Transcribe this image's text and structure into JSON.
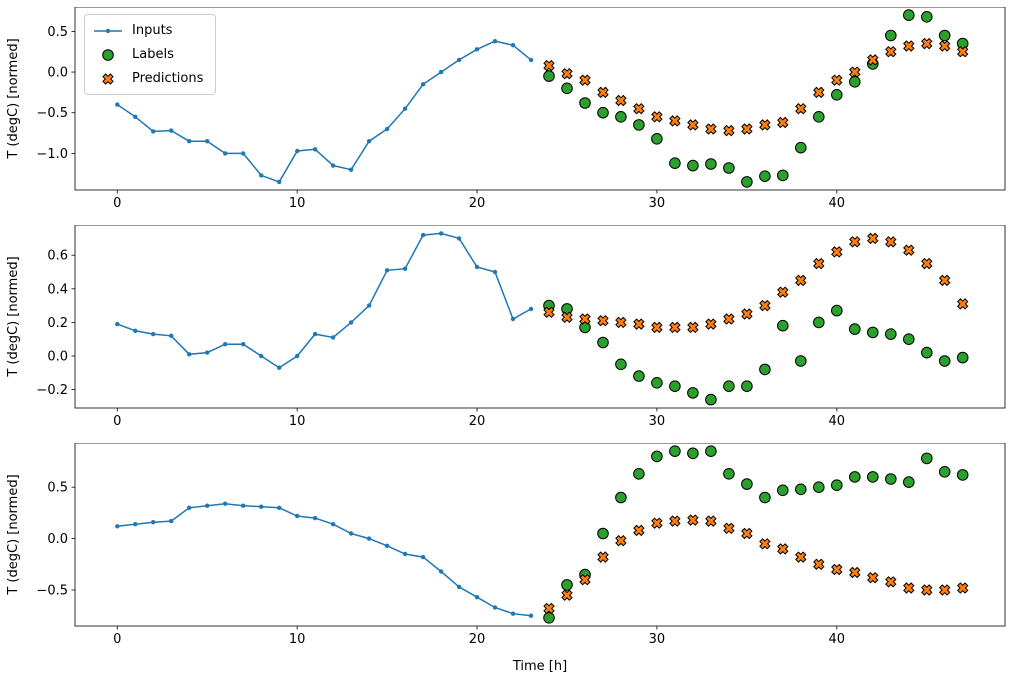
{
  "figure": {
    "xlabel": "Time [h]",
    "ylabel": "T (degC) [normed]",
    "legend": {
      "position": "upper left",
      "inputs": "Inputs",
      "labels": "Labels",
      "predictions": "Predictions"
    },
    "colors": {
      "inputs": "#1f77b4",
      "labels": "#2ca02c",
      "predictions": "#ff7f0e",
      "marker_edge": "#000000",
      "axes": "#000000",
      "background": "#ffffff"
    }
  },
  "chart_data": [
    {
      "type": "line",
      "title": "",
      "xlabel": "",
      "ylabel": "T (degC) [normed]",
      "xlim": [
        -2.35,
        49.35
      ],
      "ylim": [
        -1.45,
        0.8
      ],
      "grid": false,
      "xticks": [
        0,
        10,
        20,
        30,
        40
      ],
      "xtick_labels": [
        "0",
        "10",
        "20",
        "30",
        "40"
      ],
      "yticks": [
        0.5,
        0.0,
        -0.5,
        -1.0
      ],
      "ytick_labels": [
        "0.5",
        "0.0",
        "−0.5",
        "−1.0"
      ],
      "series": [
        {
          "name": "Inputs",
          "type": "line",
          "marker": "dot",
          "x": [
            0,
            1,
            2,
            3,
            4,
            5,
            6,
            7,
            8,
            9,
            10,
            11,
            12,
            13,
            14,
            15,
            16,
            17,
            18,
            19,
            20,
            21,
            22,
            23
          ],
          "y": [
            -0.4,
            -0.55,
            -0.73,
            -0.72,
            -0.85,
            -0.85,
            -1.0,
            -1.0,
            -1.27,
            -1.35,
            -0.97,
            -0.95,
            -1.15,
            -1.2,
            -0.85,
            -0.7,
            -0.45,
            -0.15,
            0.0,
            0.15,
            0.28,
            0.38,
            0.33,
            0.15
          ]
        },
        {
          "name": "Labels",
          "type": "scatter-circle",
          "x": [
            24,
            25,
            26,
            27,
            28,
            29,
            30,
            31,
            32,
            33,
            34,
            35,
            36,
            37,
            38,
            39,
            40,
            41,
            42,
            43,
            44,
            45,
            46,
            47
          ],
          "y": [
            -0.05,
            -0.2,
            -0.38,
            -0.5,
            -0.55,
            -0.65,
            -0.82,
            -1.12,
            -1.15,
            -1.13,
            -1.18,
            -1.35,
            -1.28,
            -1.27,
            -0.93,
            -0.55,
            -0.28,
            -0.12,
            0.1,
            0.45,
            0.7,
            0.68,
            0.45,
            0.35
          ]
        },
        {
          "name": "Predictions",
          "type": "scatter-x",
          "x": [
            24,
            25,
            26,
            27,
            28,
            29,
            30,
            31,
            32,
            33,
            34,
            35,
            36,
            37,
            38,
            39,
            40,
            41,
            42,
            43,
            44,
            45,
            46,
            47
          ],
          "y": [
            0.08,
            -0.02,
            -0.1,
            -0.25,
            -0.35,
            -0.45,
            -0.55,
            -0.6,
            -0.65,
            -0.7,
            -0.72,
            -0.7,
            -0.65,
            -0.62,
            -0.45,
            -0.25,
            -0.1,
            0.0,
            0.15,
            0.25,
            0.32,
            0.35,
            0.32,
            0.25
          ]
        }
      ]
    },
    {
      "type": "line",
      "title": "",
      "xlabel": "",
      "ylabel": "T (degC) [normed]",
      "xlim": [
        -2.35,
        49.35
      ],
      "ylim": [
        -0.31,
        0.78
      ],
      "grid": false,
      "xticks": [
        0,
        10,
        20,
        30,
        40
      ],
      "xtick_labels": [
        "0",
        "10",
        "20",
        "30",
        "40"
      ],
      "yticks": [
        0.6,
        0.4,
        0.2,
        0.0,
        -0.2
      ],
      "ytick_labels": [
        "0.6",
        "0.4",
        "0.2",
        "0.0",
        "−0.2"
      ],
      "series": [
        {
          "name": "Inputs",
          "type": "line",
          "marker": "dot",
          "x": [
            0,
            1,
            2,
            3,
            4,
            5,
            6,
            7,
            8,
            9,
            10,
            11,
            12,
            13,
            14,
            15,
            16,
            17,
            18,
            19,
            20,
            21,
            22,
            23
          ],
          "y": [
            0.19,
            0.15,
            0.13,
            0.12,
            0.01,
            0.02,
            0.07,
            0.07,
            0.0,
            -0.07,
            0.0,
            0.13,
            0.11,
            0.2,
            0.3,
            0.51,
            0.52,
            0.72,
            0.73,
            0.7,
            0.53,
            0.5,
            0.22,
            0.28
          ]
        },
        {
          "name": "Labels",
          "type": "scatter-circle",
          "x": [
            24,
            25,
            26,
            27,
            28,
            29,
            30,
            31,
            32,
            33,
            34,
            35,
            36,
            37,
            38,
            39,
            40,
            41,
            42,
            43,
            44,
            45,
            46,
            47
          ],
          "y": [
            0.3,
            0.28,
            0.17,
            0.08,
            -0.05,
            -0.12,
            -0.16,
            -0.18,
            -0.22,
            -0.26,
            -0.18,
            -0.18,
            -0.08,
            0.18,
            -0.03,
            0.2,
            0.27,
            0.16,
            0.14,
            0.13,
            0.1,
            0.02,
            -0.03,
            -0.01
          ]
        },
        {
          "name": "Predictions",
          "type": "scatter-x",
          "x": [
            24,
            25,
            26,
            27,
            28,
            29,
            30,
            31,
            32,
            33,
            34,
            35,
            36,
            37,
            38,
            39,
            40,
            41,
            42,
            43,
            44,
            45,
            46,
            47
          ],
          "y": [
            0.26,
            0.23,
            0.22,
            0.21,
            0.2,
            0.19,
            0.17,
            0.17,
            0.17,
            0.19,
            0.22,
            0.25,
            0.3,
            0.38,
            0.45,
            0.55,
            0.62,
            0.68,
            0.7,
            0.68,
            0.63,
            0.55,
            0.45,
            0.31
          ]
        }
      ]
    },
    {
      "type": "line",
      "title": "",
      "xlabel": "Time [h]",
      "ylabel": "T (degC) [normed]",
      "xlim": [
        -2.35,
        49.35
      ],
      "ylim": [
        -0.85,
        0.93
      ],
      "grid": false,
      "xticks": [
        0,
        10,
        20,
        30,
        40
      ],
      "xtick_labels": [
        "0",
        "10",
        "20",
        "30",
        "40"
      ],
      "yticks": [
        0.5,
        0.0,
        -0.5
      ],
      "ytick_labels": [
        "0.5",
        "0.0",
        "−0.5"
      ],
      "series": [
        {
          "name": "Inputs",
          "type": "line",
          "marker": "dot",
          "x": [
            0,
            1,
            2,
            3,
            4,
            5,
            6,
            7,
            8,
            9,
            10,
            11,
            12,
            13,
            14,
            15,
            16,
            17,
            18,
            19,
            20,
            21,
            22,
            23
          ],
          "y": [
            0.12,
            0.14,
            0.16,
            0.17,
            0.3,
            0.32,
            0.34,
            0.32,
            0.31,
            0.3,
            0.22,
            0.2,
            0.14,
            0.05,
            0.0,
            -0.07,
            -0.15,
            -0.18,
            -0.32,
            -0.47,
            -0.57,
            -0.67,
            -0.73,
            -0.75
          ]
        },
        {
          "name": "Labels",
          "type": "scatter-circle",
          "x": [
            24,
            25,
            26,
            27,
            28,
            29,
            30,
            31,
            32,
            33,
            34,
            35,
            36,
            37,
            38,
            39,
            40,
            41,
            42,
            43,
            44,
            45,
            46,
            47
          ],
          "y": [
            -0.77,
            -0.45,
            -0.35,
            0.05,
            0.4,
            0.63,
            0.8,
            0.85,
            0.83,
            0.85,
            0.63,
            0.53,
            0.4,
            0.47,
            0.48,
            0.5,
            0.52,
            0.6,
            0.6,
            0.58,
            0.55,
            0.78,
            0.65,
            0.62
          ]
        },
        {
          "name": "Predictions",
          "type": "scatter-x",
          "x": [
            24,
            25,
            26,
            27,
            28,
            29,
            30,
            31,
            32,
            33,
            34,
            35,
            36,
            37,
            38,
            39,
            40,
            41,
            42,
            43,
            44,
            45,
            46,
            47
          ],
          "y": [
            -0.68,
            -0.55,
            -0.4,
            -0.18,
            -0.02,
            0.08,
            0.15,
            0.17,
            0.18,
            0.17,
            0.1,
            0.05,
            -0.05,
            -0.1,
            -0.18,
            -0.25,
            -0.3,
            -0.33,
            -0.38,
            -0.42,
            -0.48,
            -0.5,
            -0.5,
            -0.48
          ]
        }
      ]
    }
  ]
}
